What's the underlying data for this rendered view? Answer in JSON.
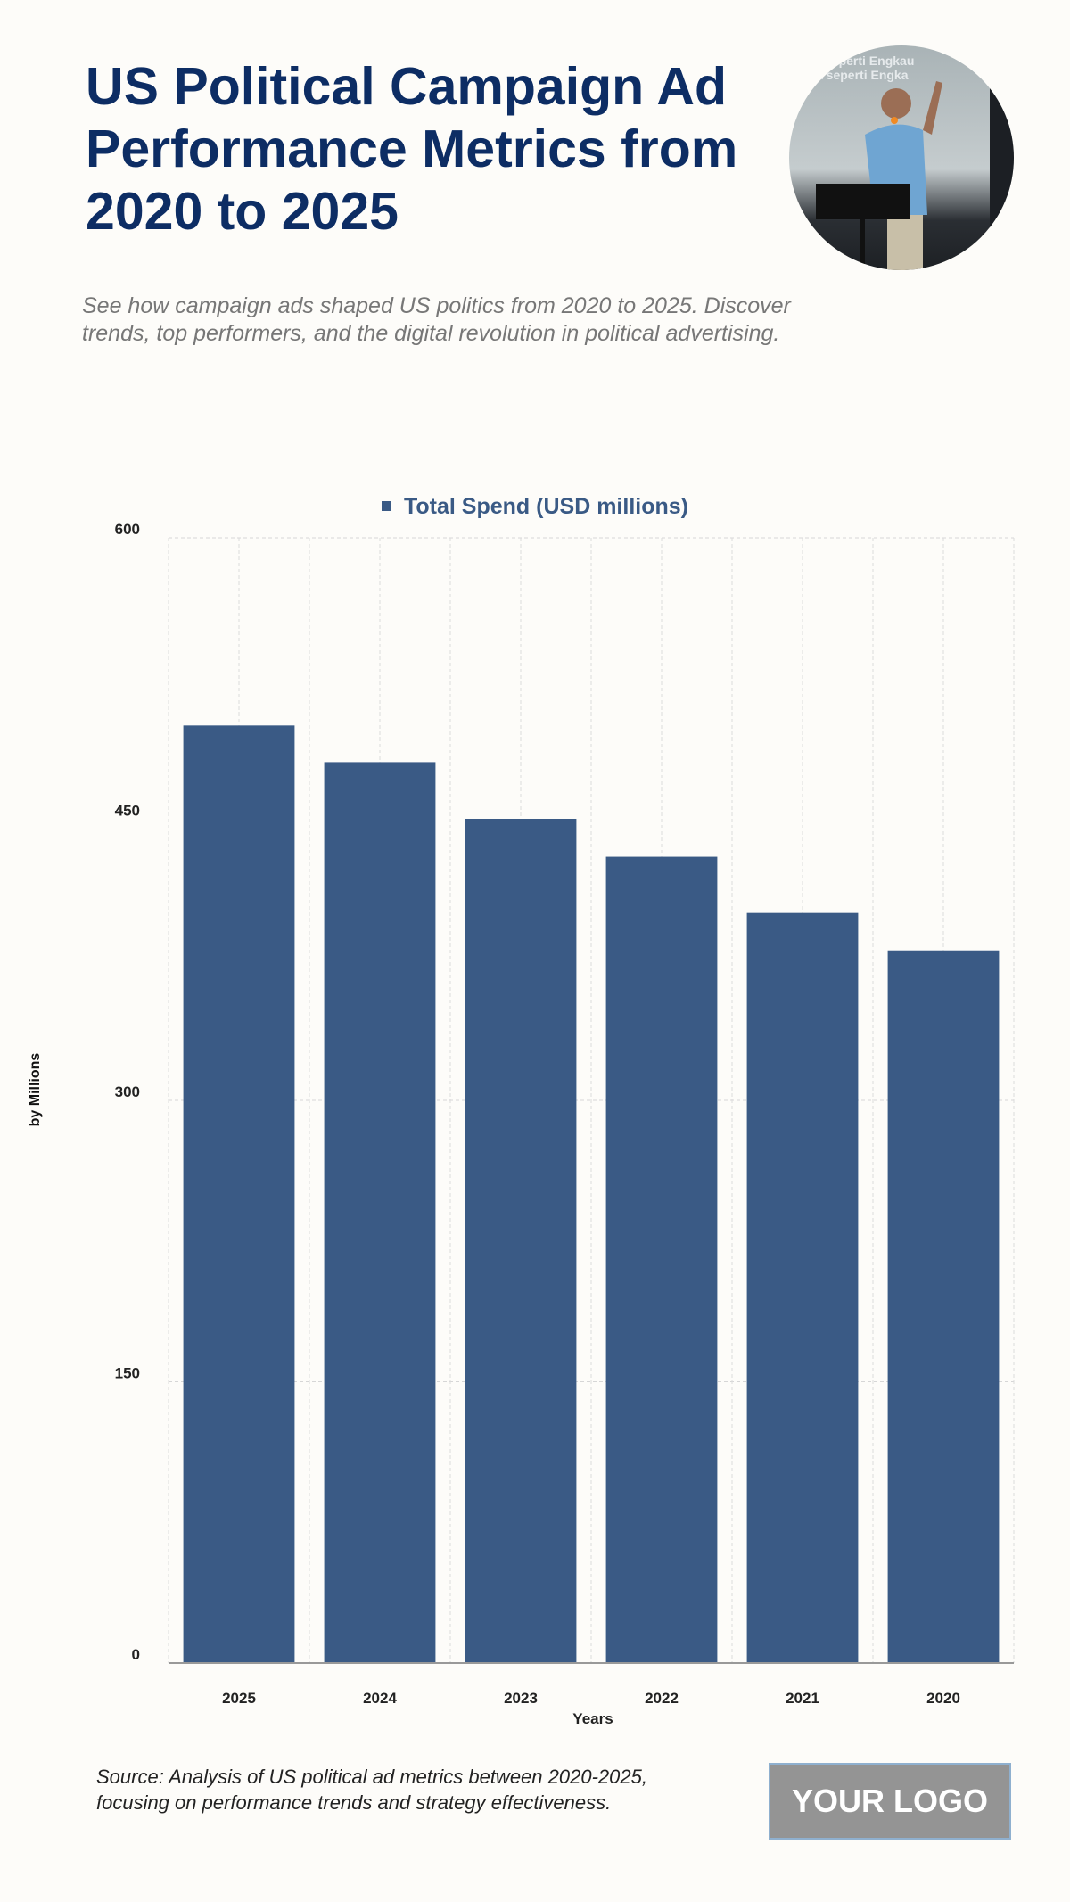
{
  "header": {
    "title": "US Political Campaign Ad Performance Metrics from 2020 to 2025",
    "subtitle": "See how campaign ads shaped US politics from 2020 to 2025. Discover trends, top performers, and the digital revolution in political advertising."
  },
  "chart_data": {
    "type": "bar",
    "categories": [
      "2025",
      "2024",
      "2023",
      "2022",
      "2021",
      "2020"
    ],
    "series": [
      {
        "name": "Total Spend (USD millions)",
        "values": [
          500,
          480,
          450,
          430,
          400,
          380
        ]
      }
    ],
    "xlabel": "Years",
    "ylabel": "by Millions",
    "ylim": [
      0,
      600
    ],
    "yticks": [
      0,
      150,
      300,
      450,
      600
    ],
    "grid": true,
    "legend": "top-center",
    "color": "#3a5a85"
  },
  "footer": {
    "source": "Source: Analysis of US political ad metrics between 2020-2025, focusing on performance trends and strategy effectiveness.",
    "logo": "YOUR LOGO"
  }
}
